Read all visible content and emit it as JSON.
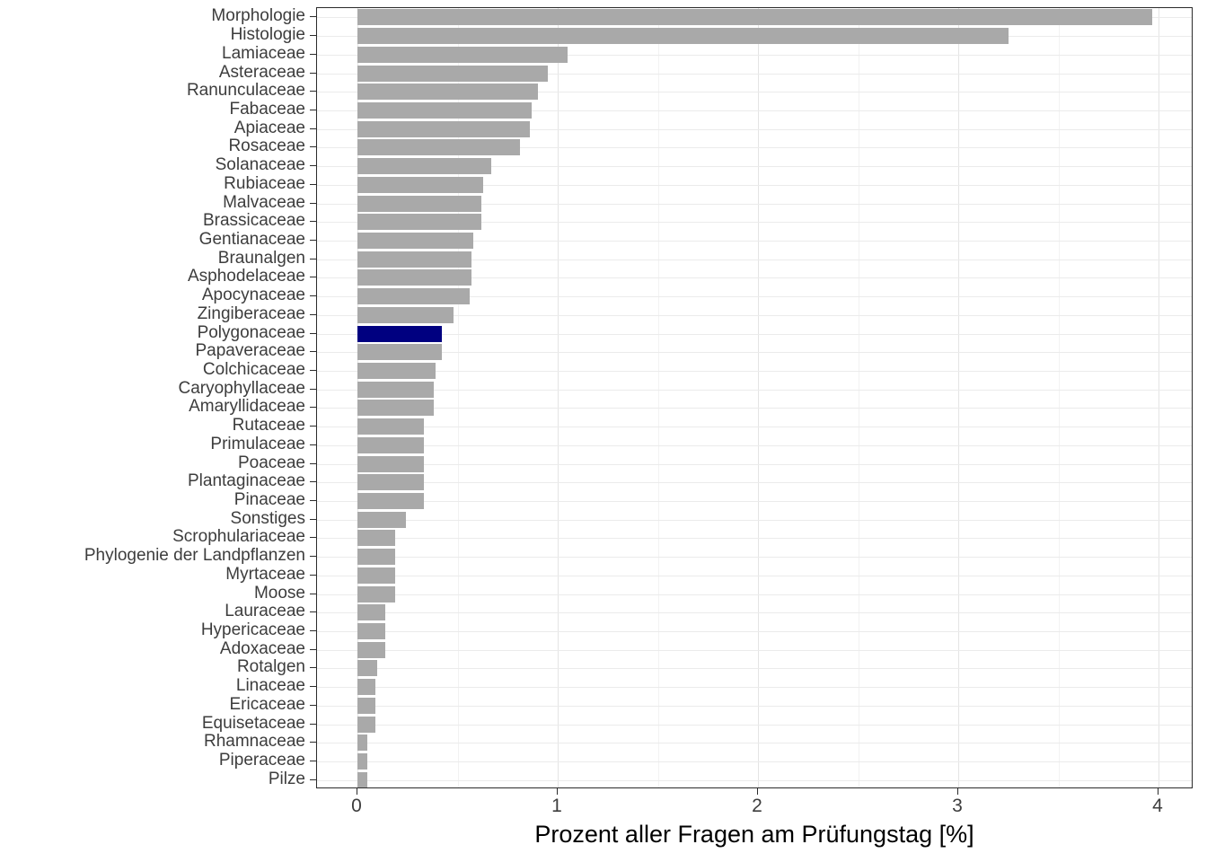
{
  "chart_data": {
    "type": "bar",
    "orientation": "horizontal",
    "title": "",
    "xlabel": "Prozent aller Fragen am Prüfungstag [%]",
    "ylabel": "",
    "xlim": [
      0,
      4.17
    ],
    "x_ticks": [
      0,
      1,
      2,
      3,
      4
    ],
    "x_tick_labels": [
      "0",
      "1",
      "2",
      "3",
      "4"
    ],
    "grid": "on",
    "legend": "none",
    "bar_color": "#a9a9a9",
    "highlight_color": "#000080",
    "highlight_category": "Polygonaceae",
    "categories": [
      "Morphologie",
      "Histologie",
      "Lamiaceae",
      "Asteraceae",
      "Ranunculaceae",
      "Fabaceae",
      "Apiaceae",
      "Rosaceae",
      "Solanaceae",
      "Rubiaceae",
      "Malvaceae",
      "Brassicaceae",
      "Gentianaceae",
      "Braunalgen",
      "Asphodelaceae",
      "Apocynaceae",
      "Zingiberaceae",
      "Polygonaceae",
      "Papaveraceae",
      "Colchicaceae",
      "Caryophyllaceae",
      "Amaryllidaceae",
      "Rutaceae",
      "Primulaceae",
      "Poaceae",
      "Plantaginaceae",
      "Pinaceae",
      "Sonstiges",
      "Scrophulariaceae",
      "Phylogenie der Landpflanzen",
      "Myrtaceae",
      "Moose",
      "Lauraceae",
      "Hypericaceae",
      "Adoxaceae",
      "Rotalgen",
      "Linaceae",
      "Ericaceae",
      "Equisetaceae",
      "Rhamnaceae",
      "Piperaceae",
      "Pilze"
    ],
    "values": [
      3.97,
      3.25,
      1.05,
      0.95,
      0.9,
      0.87,
      0.86,
      0.81,
      0.67,
      0.63,
      0.62,
      0.62,
      0.58,
      0.57,
      0.57,
      0.56,
      0.48,
      0.42,
      0.42,
      0.39,
      0.38,
      0.38,
      0.33,
      0.33,
      0.33,
      0.33,
      0.33,
      0.24,
      0.19,
      0.19,
      0.19,
      0.19,
      0.14,
      0.14,
      0.14,
      0.1,
      0.09,
      0.09,
      0.09,
      0.05,
      0.05,
      0.05
    ]
  }
}
